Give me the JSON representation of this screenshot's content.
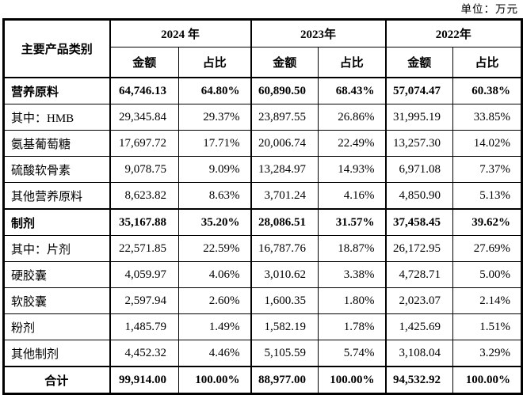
{
  "unit_label": "单位：万元",
  "table": {
    "col1_header": "主要产品类别",
    "year_groups": [
      {
        "year": "2024 年",
        "amount_label": "金额",
        "ratio_label": "占比"
      },
      {
        "year": "2023年",
        "amount_label": "金额",
        "ratio_label": "占比"
      },
      {
        "year": "2022年",
        "amount_label": "金额",
        "ratio_label": "占比"
      }
    ],
    "rows": [
      {
        "label": "营养原料",
        "bold": true,
        "thick_top": false,
        "total": false,
        "values": [
          "64,746.13",
          "64.80%",
          "60,890.50",
          "68.43%",
          "57,074.47",
          "60.38%"
        ]
      },
      {
        "label": "其中：HMB",
        "bold": false,
        "thick_top": false,
        "total": false,
        "values": [
          "29,345.84",
          "29.37%",
          "23,897.55",
          "26.86%",
          "31,995.19",
          "33.85%"
        ]
      },
      {
        "label": "氨基葡萄糖",
        "bold": false,
        "thick_top": false,
        "total": false,
        "values": [
          "17,697.72",
          "17.71%",
          "20,006.74",
          "22.49%",
          "13,257.30",
          "14.02%"
        ]
      },
      {
        "label": "硫酸软骨素",
        "bold": false,
        "thick_top": false,
        "total": false,
        "values": [
          "9,078.75",
          "9.09%",
          "13,284.97",
          "14.93%",
          "6,971.08",
          "7.37%"
        ]
      },
      {
        "label": "其他营养原料",
        "bold": false,
        "thick_top": false,
        "total": false,
        "values": [
          "8,623.82",
          "8.63%",
          "3,701.24",
          "4.16%",
          "4,850.90",
          "5.13%"
        ]
      },
      {
        "label": "制剂",
        "bold": true,
        "thick_top": true,
        "total": false,
        "values": [
          "35,167.88",
          "35.20%",
          "28,086.51",
          "31.57%",
          "37,458.45",
          "39.62%"
        ]
      },
      {
        "label": "其中：片剂",
        "bold": false,
        "thick_top": false,
        "total": false,
        "values": [
          "22,571.85",
          "22.59%",
          "16,787.76",
          "18.87%",
          "26,172.95",
          "27.69%"
        ]
      },
      {
        "label": "硬胶囊",
        "bold": false,
        "thick_top": false,
        "total": false,
        "values": [
          "4,059.97",
          "4.06%",
          "3,010.62",
          "3.38%",
          "4,728.71",
          "5.00%"
        ]
      },
      {
        "label": "软胶囊",
        "bold": false,
        "thick_top": false,
        "total": false,
        "values": [
          "2,597.94",
          "2.60%",
          "1,600.35",
          "1.80%",
          "2,023.07",
          "2.14%"
        ]
      },
      {
        "label": "粉剂",
        "bold": false,
        "thick_top": false,
        "total": false,
        "values": [
          "1,485.79",
          "1.49%",
          "1,582.19",
          "1.78%",
          "1,425.69",
          "1.51%"
        ]
      },
      {
        "label": "其他制剂",
        "bold": false,
        "thick_top": false,
        "total": false,
        "values": [
          "4,452.32",
          "4.46%",
          "5,105.59",
          "5.74%",
          "3,108.04",
          "3.29%"
        ]
      },
      {
        "label": "合计",
        "bold": true,
        "thick_top": true,
        "total": true,
        "values": [
          "99,914.00",
          "100.00%",
          "88,977.00",
          "100.00%",
          "94,532.92",
          "100.00%"
        ]
      }
    ]
  }
}
